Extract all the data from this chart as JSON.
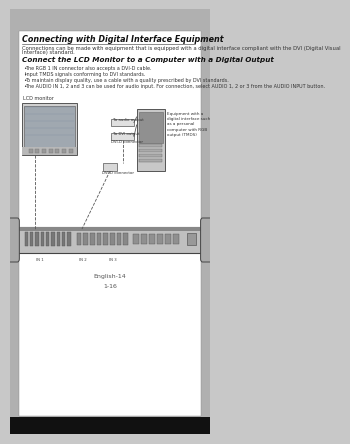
{
  "bg_outer": "#c8c8c8",
  "bg_page": "#ffffff",
  "title": "Connecting with Digital Interface Equipment",
  "subtitle": "Connections can be made with equipment that is equipped with a digital interface compliant with the DVI (Digital Visual Interface) standard.",
  "section_title": "Connect the LCD Monitor to a Computer with a Digital Output",
  "bullets": [
    "The RGB 1 IN connector also accepts a DVI-D cable.",
    "Input TMDS signals conforming to DVI standards.",
    "To maintain display quality, use a cable with a quality prescribed by DVI standards.",
    "The AUDIO IN 1, 2 and 3 can be used for audio input. For connection, select AUDIO 1, 2 or 3 from the AUDIO INPUT button."
  ],
  "footer_center": "English-14",
  "footer_page": "1-16",
  "label_lcd": "LCD monitor",
  "label_to_audio": "To audio output",
  "label_to_dvi": "To DVI output",
  "label_dvi_top": "DVI-D connector",
  "label_dvi_bot": "DVI-D connector",
  "label_equipment": "Equipment with a\ndigital interface such\nas a personal\ncomputer with RGB\noutput (TMDS)"
}
